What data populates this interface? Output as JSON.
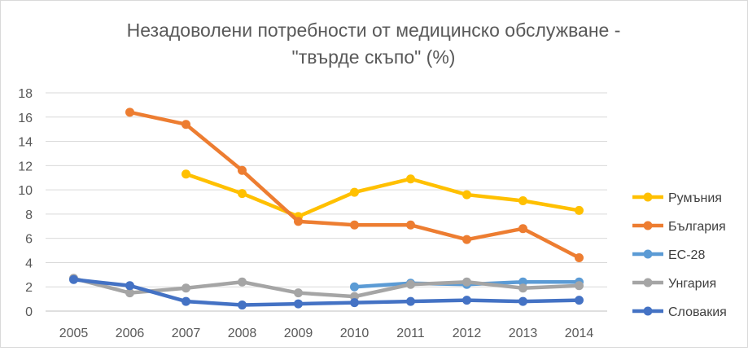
{
  "chart_data": {
    "type": "line",
    "title_line1": "Незадоволени потребности от медицинско обслужване -",
    "title_line2": "\"твърде скъпо\" (%)",
    "xlabel": "",
    "ylabel": "",
    "categories": [
      "2005",
      "2006",
      "2007",
      "2008",
      "2009",
      "2010",
      "2011",
      "2012",
      "2013",
      "2014"
    ],
    "ylim": [
      0,
      18
    ],
    "yticks": [
      "0",
      "2",
      "4",
      "6",
      "8",
      "10",
      "12",
      "14",
      "16",
      "18"
    ],
    "grid": true,
    "legend_position": "right",
    "series": [
      {
        "name": "Румъния",
        "color": "#FFC000",
        "values": [
          null,
          null,
          11.3,
          9.7,
          7.8,
          9.8,
          10.9,
          9.6,
          9.1,
          8.3
        ]
      },
      {
        "name": "България",
        "color": "#ED7D31",
        "values": [
          null,
          16.4,
          15.4,
          11.6,
          7.4,
          7.1,
          7.1,
          5.9,
          6.8,
          4.4
        ]
      },
      {
        "name": "ЕС-28",
        "color": "#5B9BD5",
        "values": [
          null,
          null,
          null,
          null,
          null,
          2.0,
          2.3,
          2.2,
          2.4,
          2.4
        ]
      },
      {
        "name": "Унгария",
        "color": "#A5A5A5",
        "values": [
          2.7,
          1.5,
          1.9,
          2.4,
          1.5,
          1.2,
          2.2,
          2.4,
          1.9,
          2.1
        ]
      },
      {
        "name": "Словакия",
        "color": "#4472C4",
        "values": [
          2.6,
          2.1,
          0.8,
          0.5,
          0.6,
          0.7,
          0.8,
          0.9,
          0.8,
          0.9
        ]
      }
    ]
  }
}
